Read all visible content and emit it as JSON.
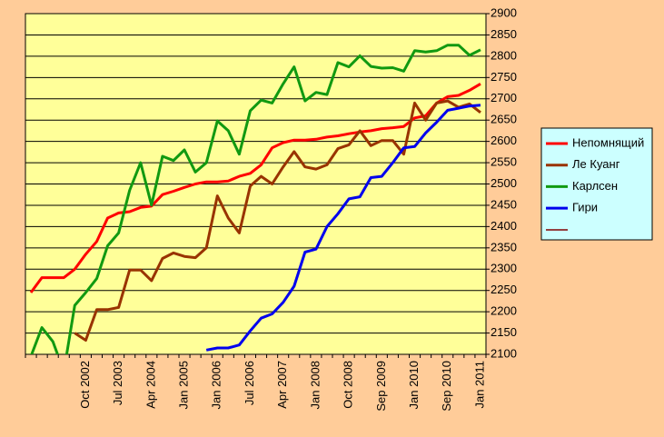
{
  "chart_data": {
    "type": "line",
    "categories": [
      null,
      null,
      null,
      null,
      null,
      "Oct 2002",
      null,
      null,
      "Jul 2003",
      null,
      null,
      "Apr 2004",
      null,
      null,
      "Jan 2005",
      null,
      null,
      "Jan 2006",
      null,
      null,
      "Jul 2006",
      null,
      null,
      "Apr 2007",
      null,
      null,
      "Jan 2008",
      null,
      null,
      "Oct 2008",
      null,
      null,
      "Sep 2009",
      null,
      null,
      "Jan 2010",
      null,
      null,
      "Sep 2010",
      null,
      null,
      "Jan 2011"
    ],
    "series": [
      {
        "name": "Непомнящий",
        "color": "#ff0000",
        "values": [
          2245,
          2280,
          2280,
          2280,
          2300,
          2335,
          2365,
          2420,
          2432,
          2435,
          2445,
          2448,
          2475,
          2483,
          2492,
          2500,
          2505,
          2505,
          2507,
          2518,
          2525,
          2545,
          2585,
          2597,
          2603,
          2603,
          2605,
          2610,
          2613,
          2618,
          2622,
          2625,
          2630,
          2632,
          2635,
          2655,
          2660,
          2690,
          2705,
          2708,
          2720,
          2735
        ]
      },
      {
        "name": "Ле Куанг",
        "color": "#993300",
        "values": [
          null,
          null,
          null,
          null,
          2150,
          2133,
          2205,
          2205,
          2210,
          2298,
          2298,
          2273,
          2325,
          2338,
          2330,
          2327,
          2350,
          2472,
          2420,
          2385,
          2495,
          2518,
          2500,
          2540,
          2576,
          2540,
          2535,
          2545,
          2583,
          2592,
          2625,
          2590,
          2602,
          2602,
          2570,
          2690,
          2650,
          2690,
          2695,
          2680,
          2688,
          2668
        ]
      },
      {
        "name": "Карлсен",
        "color": "#119911",
        "values": [
          2095,
          2163,
          2130,
          2060,
          2215,
          2245,
          2278,
          2355,
          2385,
          2485,
          2550,
          2450,
          2565,
          2555,
          2580,
          2528,
          2550,
          2648,
          2625,
          2570,
          2672,
          2697,
          2690,
          2735,
          2775,
          2695,
          2715,
          2710,
          2785,
          2775,
          2801,
          2776,
          2772,
          2773,
          2765,
          2813,
          2810,
          2813,
          2826,
          2826,
          2802,
          2815
        ]
      },
      {
        "name": "Гири",
        "color": "#0000ee",
        "values": [
          null,
          null,
          null,
          null,
          null,
          null,
          null,
          null,
          null,
          null,
          null,
          null,
          null,
          null,
          null,
          null,
          2110,
          2115,
          2115,
          2122,
          2155,
          2185,
          2195,
          2222,
          2260,
          2340,
          2347,
          2400,
          2430,
          2465,
          2470,
          2515,
          2518,
          2550,
          2585,
          2588,
          2620,
          2645,
          2673,
          2678,
          2683,
          2685
        ]
      }
    ],
    "ylim": [
      2100,
      2900
    ],
    "yticks": [
      2100,
      2150,
      2200,
      2250,
      2300,
      2350,
      2400,
      2450,
      2500,
      2550,
      2600,
      2650,
      2700,
      2750,
      2800,
      2850,
      2900
    ],
    "grid": true,
    "legend": "right"
  }
}
